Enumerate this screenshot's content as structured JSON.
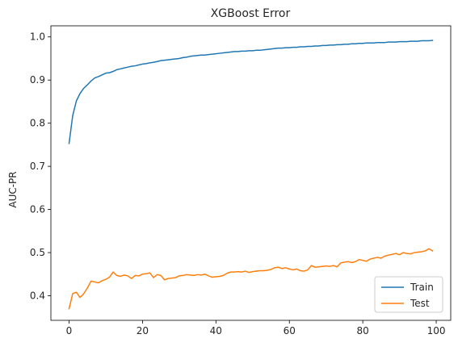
{
  "chart_data": {
    "type": "line",
    "title": "XGBoost Error",
    "xlabel": "",
    "ylabel": "AUC-PR",
    "xlim": [
      -4.95,
      103.95
    ],
    "ylim": [
      0.343,
      1.0257
    ],
    "xticks": [
      0,
      20,
      40,
      60,
      80,
      100
    ],
    "xtick_labels": [
      "0",
      "20",
      "40",
      "60",
      "80",
      "100"
    ],
    "yticks": [
      0.4,
      0.5,
      0.6,
      0.7,
      0.8,
      0.9,
      1.0
    ],
    "ytick_labels": [
      "0.4",
      "0.5",
      "0.6",
      "0.7",
      "0.8",
      "0.9",
      "1.0"
    ],
    "grid": false,
    "legend_position": "lower right",
    "x": [
      0,
      1,
      2,
      3,
      4,
      5,
      6,
      7,
      8,
      9,
      10,
      11,
      12,
      13,
      14,
      15,
      16,
      17,
      18,
      19,
      20,
      21,
      22,
      23,
      24,
      25,
      26,
      27,
      28,
      29,
      30,
      31,
      32,
      33,
      34,
      35,
      36,
      37,
      38,
      39,
      40,
      41,
      42,
      43,
      44,
      45,
      46,
      47,
      48,
      49,
      50,
      51,
      52,
      53,
      54,
      55,
      56,
      57,
      58,
      59,
      60,
      61,
      62,
      63,
      64,
      65,
      66,
      67,
      68,
      69,
      70,
      71,
      72,
      73,
      74,
      75,
      76,
      77,
      78,
      79,
      80,
      81,
      82,
      83,
      84,
      85,
      86,
      87,
      88,
      89,
      90,
      91,
      92,
      93,
      94,
      95,
      96,
      97,
      98,
      99
    ],
    "series": [
      {
        "name": "Train",
        "color": "#1f77b4",
        "values": [
          0.753,
          0.818,
          0.852,
          0.869,
          0.881,
          0.889,
          0.898,
          0.905,
          0.908,
          0.912,
          0.916,
          0.917,
          0.92,
          0.924,
          0.926,
          0.928,
          0.93,
          0.932,
          0.933,
          0.935,
          0.937,
          0.938,
          0.94,
          0.941,
          0.943,
          0.945,
          0.946,
          0.947,
          0.948,
          0.949,
          0.95,
          0.952,
          0.953,
          0.955,
          0.956,
          0.957,
          0.958,
          0.958,
          0.959,
          0.96,
          0.961,
          0.962,
          0.963,
          0.964,
          0.965,
          0.966,
          0.966,
          0.967,
          0.967,
          0.968,
          0.968,
          0.969,
          0.969,
          0.97,
          0.971,
          0.972,
          0.973,
          0.974,
          0.974,
          0.975,
          0.975,
          0.976,
          0.976,
          0.977,
          0.977,
          0.978,
          0.978,
          0.979,
          0.979,
          0.98,
          0.98,
          0.981,
          0.981,
          0.982,
          0.982,
          0.983,
          0.983,
          0.984,
          0.984,
          0.985,
          0.985,
          0.986,
          0.986,
          0.986,
          0.987,
          0.987,
          0.987,
          0.988,
          0.988,
          0.988,
          0.989,
          0.989,
          0.989,
          0.99,
          0.99,
          0.99,
          0.991,
          0.991,
          0.991,
          0.992
        ]
      },
      {
        "name": "Test",
        "color": "#ff7f0e",
        "values": [
          0.37,
          0.405,
          0.408,
          0.396,
          0.405,
          0.418,
          0.434,
          0.432,
          0.43,
          0.435,
          0.438,
          0.443,
          0.455,
          0.447,
          0.445,
          0.448,
          0.446,
          0.44,
          0.447,
          0.446,
          0.45,
          0.451,
          0.453,
          0.442,
          0.449,
          0.447,
          0.437,
          0.44,
          0.441,
          0.442,
          0.446,
          0.447,
          0.449,
          0.448,
          0.447,
          0.449,
          0.448,
          0.45,
          0.446,
          0.443,
          0.444,
          0.445,
          0.447,
          0.452,
          0.455,
          0.455,
          0.456,
          0.455,
          0.457,
          0.454,
          0.456,
          0.457,
          0.458,
          0.458,
          0.459,
          0.461,
          0.465,
          0.466,
          0.463,
          0.465,
          0.462,
          0.46,
          0.462,
          0.458,
          0.457,
          0.46,
          0.47,
          0.466,
          0.467,
          0.468,
          0.469,
          0.468,
          0.47,
          0.467,
          0.476,
          0.478,
          0.479,
          0.477,
          0.479,
          0.484,
          0.482,
          0.48,
          0.485,
          0.487,
          0.489,
          0.487,
          0.492,
          0.494,
          0.496,
          0.498,
          0.495,
          0.5,
          0.498,
          0.497,
          0.5,
          0.501,
          0.502,
          0.504,
          0.509,
          0.504
        ]
      }
    ]
  }
}
